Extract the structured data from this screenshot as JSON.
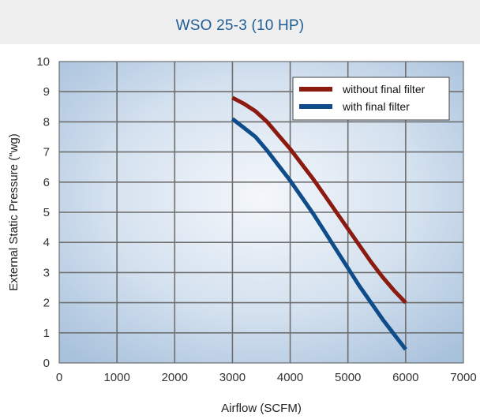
{
  "chart_data": {
    "type": "line",
    "title": "WSO 25-3 (10 HP)",
    "xlabel": "Airflow (SCFM)",
    "ylabel": "External Static Pressure (\"wg)",
    "xlim": [
      0,
      7000
    ],
    "ylim": [
      0,
      10
    ],
    "xticks": [
      "0",
      "1000",
      "2000",
      "3000",
      "4000",
      "5000",
      "6000",
      "7000"
    ],
    "yticks": [
      "0",
      "1",
      "2",
      "3",
      "4",
      "5",
      "6",
      "7",
      "8",
      "9",
      "10"
    ],
    "grid": true,
    "legend_position": "top-right",
    "series": [
      {
        "name": "without final filter",
        "color": "#8b1a10",
        "x": [
          3000,
          3200,
          3400,
          3600,
          3800,
          4000,
          4200,
          4400,
          4600,
          4800,
          5000,
          5200,
          5400,
          5600,
          5800,
          6000
        ],
        "y": [
          8.8,
          8.6,
          8.35,
          8.0,
          7.55,
          7.1,
          6.6,
          6.1,
          5.55,
          5.0,
          4.45,
          3.9,
          3.35,
          2.85,
          2.4,
          2.0
        ]
      },
      {
        "name": "with final filter",
        "color": "#0f4c8a",
        "x": [
          3000,
          3200,
          3400,
          3600,
          3800,
          4000,
          4200,
          4400,
          4600,
          4800,
          5000,
          5200,
          5400,
          5600,
          5800,
          6000
        ],
        "y": [
          8.1,
          7.8,
          7.5,
          7.05,
          6.55,
          6.05,
          5.5,
          4.95,
          4.35,
          3.75,
          3.15,
          2.55,
          2.0,
          1.45,
          0.95,
          0.45
        ]
      }
    ]
  }
}
